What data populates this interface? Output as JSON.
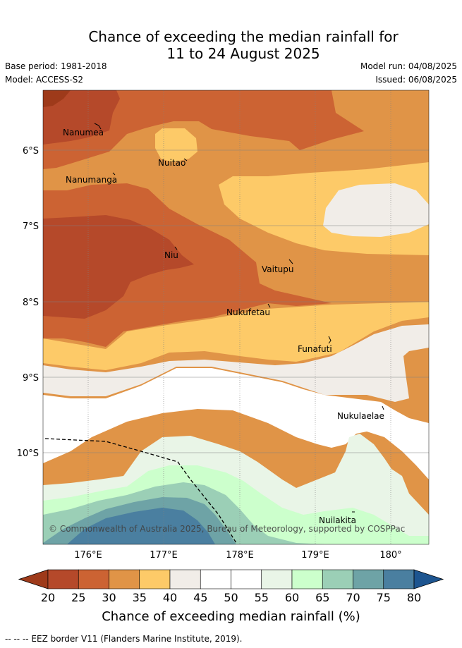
{
  "title": {
    "line1": "Chance of exceeding the median rainfall for",
    "line2": "11 to 24 August 2025"
  },
  "meta": {
    "base_period": "Base period: 1981-2018",
    "model": "Model: ACCESS-S2",
    "model_run": "Model run: 04/08/2025",
    "issued": "Issued: 06/08/2025"
  },
  "axes": {
    "lat_labels": [
      "6°S",
      "7°S",
      "8°S",
      "9°S",
      "10°S"
    ],
    "lon_labels": [
      "176°E",
      "177°E",
      "178°E",
      "179°E",
      "180°"
    ]
  },
  "places": [
    {
      "name": "Nanumea"
    },
    {
      "name": "Nuitao"
    },
    {
      "name": "Nanumanga"
    },
    {
      "name": "Niu"
    },
    {
      "name": "Vaitupu"
    },
    {
      "name": "Nukufetau"
    },
    {
      "name": "Funafuti"
    },
    {
      "name": "Nukulaelae"
    },
    {
      "name": "Nuilakita"
    }
  ],
  "copyright": "© Commonwealth of Australia 2025, Bureau of Meteorology, supported by COSPPac",
  "colorbar": {
    "ticks": [
      "20",
      "25",
      "30",
      "35",
      "40",
      "45",
      "50",
      "55",
      "60",
      "65",
      "70",
      "75",
      "80"
    ],
    "label": "Chance of exceeding median rainfall (%)",
    "colors": [
      "#9e3a1a",
      "#b5492a",
      "#cc6333",
      "#e09447",
      "#fdca68",
      "#f1ede8",
      "#ffffff",
      "#ffffff",
      "#e9f5e7",
      "#ccffcc",
      "#9bcfb6",
      "#6ea3a6",
      "#4a7fa0",
      "#1d5590"
    ]
  },
  "footer": {
    "eez_note": "--  --  -- EEZ border V11 (Flanders Marine Institute, 2019)."
  }
}
